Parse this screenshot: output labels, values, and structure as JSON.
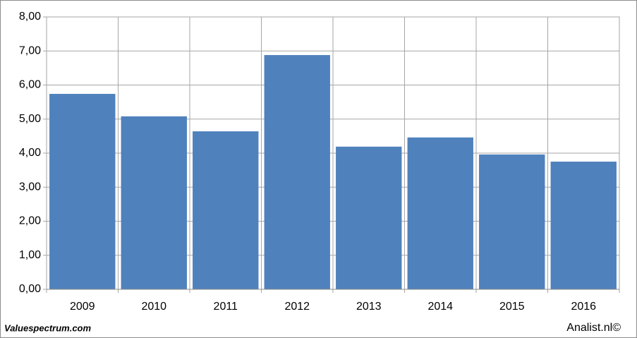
{
  "chart_data": {
    "type": "bar",
    "categories": [
      "2009",
      "2010",
      "2011",
      "2012",
      "2013",
      "2014",
      "2015",
      "2016"
    ],
    "values": [
      5.74,
      5.08,
      4.64,
      6.88,
      4.19,
      4.46,
      3.96,
      3.75
    ],
    "color": "#4f81bd",
    "ylim": [
      0,
      8
    ],
    "yticks": [
      {
        "value": 0,
        "label": "0,00"
      },
      {
        "value": 1,
        "label": "1,00"
      },
      {
        "value": 2,
        "label": "2,00"
      },
      {
        "value": 3,
        "label": "3,00"
      },
      {
        "value": 4,
        "label": "4,00"
      },
      {
        "value": 5,
        "label": "5,00"
      },
      {
        "value": 6,
        "label": "6,00"
      },
      {
        "value": 7,
        "label": "7,00"
      },
      {
        "value": 8,
        "label": "8,00"
      }
    ],
    "grid": true
  },
  "footer": {
    "left": "Valuespectrum.com",
    "right": "Analist.nl©"
  }
}
